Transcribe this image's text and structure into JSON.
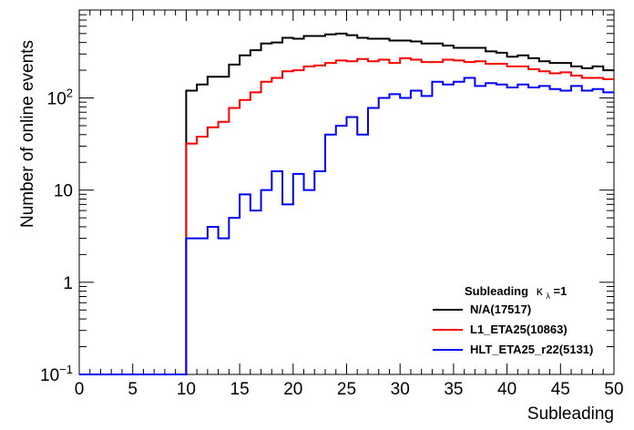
{
  "chart_data": {
    "type": "line",
    "title": "",
    "xlabel": "Subleading",
    "ylabel": "Number of online events",
    "xlim": [
      0,
      50
    ],
    "ylim": [
      0.1,
      900
    ],
    "yscale": "log",
    "grid": false,
    "x_ticks": [
      0,
      5,
      10,
      15,
      20,
      25,
      30,
      35,
      40,
      45,
      50
    ],
    "y_ticks": [
      {
        "value": 0.1,
        "base": "10",
        "exp": "−1"
      },
      {
        "value": 1,
        "label": "1"
      },
      {
        "value": 10,
        "label": "10"
      },
      {
        "value": 100,
        "base": "10",
        "exp": "2"
      }
    ],
    "legend": {
      "position": "bottom-right",
      "title_main": "Subleading",
      "title_kappa": "κ",
      "title_sub": "λ",
      "title_tail": "=1"
    },
    "bin_edges_start": 0,
    "bin_width": 1,
    "series": [
      {
        "name": "N/A(17517)",
        "color": "#000000",
        "values": [
          0.1,
          0.1,
          0.1,
          0.1,
          0.1,
          0.1,
          0.1,
          0.1,
          0.1,
          0.1,
          120,
          140,
          170,
          170,
          230,
          290,
          330,
          390,
          400,
          450,
          440,
          470,
          470,
          490,
          500,
          480,
          450,
          440,
          440,
          420,
          420,
          410,
          390,
          390,
          370,
          350,
          350,
          350,
          320,
          310,
          280,
          290,
          270,
          250,
          240,
          240,
          220,
          210,
          220,
          200
        ]
      },
      {
        "name": "L1_ETA25(10863)",
        "color": "#ff0000",
        "values": [
          0.1,
          0.1,
          0.1,
          0.1,
          0.1,
          0.1,
          0.1,
          0.1,
          0.1,
          0.1,
          32,
          38,
          48,
          55,
          78,
          95,
          115,
          150,
          165,
          195,
          200,
          220,
          225,
          240,
          255,
          250,
          265,
          250,
          260,
          240,
          270,
          260,
          245,
          245,
          260,
          255,
          245,
          250,
          235,
          235,
          220,
          220,
          205,
          195,
          185,
          190,
          175,
          165,
          165,
          160
        ]
      },
      {
        "name": "HLT_ETA25_r22(5131)",
        "color": "#0000ff",
        "values": [
          0.1,
          0.1,
          0.1,
          0.1,
          0.1,
          0.1,
          0.1,
          0.1,
          0.1,
          0.1,
          3,
          3,
          4,
          3,
          5,
          9,
          6,
          10,
          16,
          7,
          15,
          10,
          16,
          40,
          50,
          62,
          40,
          78,
          100,
          110,
          100,
          120,
          105,
          150,
          140,
          150,
          165,
          135,
          145,
          140,
          130,
          140,
          130,
          135,
          125,
          120,
          135,
          120,
          125,
          115
        ]
      }
    ]
  }
}
